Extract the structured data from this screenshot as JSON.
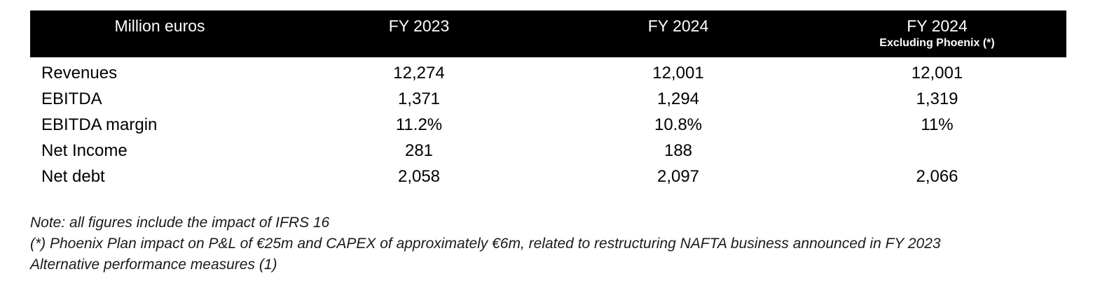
{
  "table": {
    "headers": [
      {
        "main": "Million euros",
        "sub": ""
      },
      {
        "main": "FY 2023",
        "sub": ""
      },
      {
        "main": "FY 2024",
        "sub": ""
      },
      {
        "main": "FY 2024",
        "sub": "Excluding Phoenix (*)"
      }
    ],
    "rows": [
      {
        "label": "Revenues",
        "fy2023": "12,274",
        "fy2024": "12,001",
        "fy2024_ex": "12,001"
      },
      {
        "label": "EBITDA",
        "fy2023": "1,371",
        "fy2024": "1,294",
        "fy2024_ex": "1,319"
      },
      {
        "label": "EBITDA margin",
        "fy2023": "11.2%",
        "fy2024": "10.8%",
        "fy2024_ex": "11%"
      },
      {
        "label": "Net Income",
        "fy2023": "281",
        "fy2024": "188",
        "fy2024_ex": ""
      },
      {
        "label": "Net debt",
        "fy2023": "2,058",
        "fy2024": "2,097",
        "fy2024_ex": "2,066"
      }
    ]
  },
  "notes": [
    "Note: all figures include the impact of IFRS 16",
    "(*) Phoenix Plan impact on P&L of €25m and CAPEX of approximately €6m, related to restructuring NAFTA business announced in FY 2023",
    "Alternative performance measures (1)"
  ],
  "colors": {
    "header_bg": "#000000",
    "header_text": "#ffffff",
    "body_text": "#000000"
  }
}
